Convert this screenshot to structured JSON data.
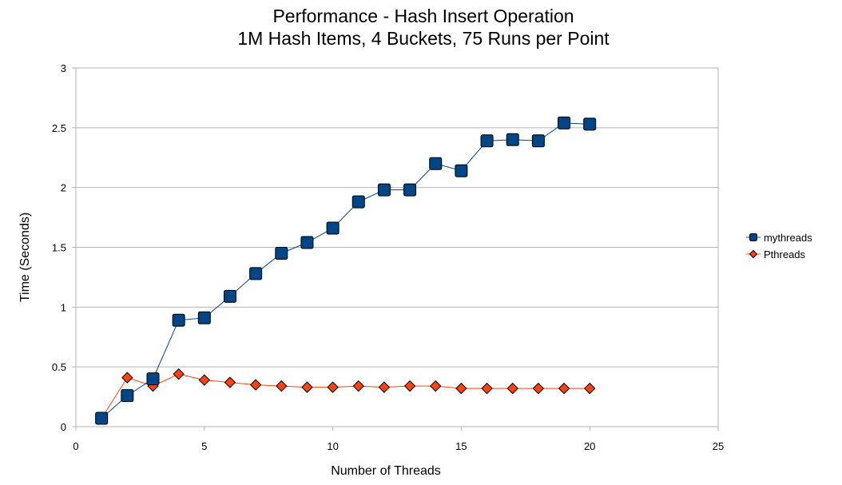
{
  "chart_data": {
    "type": "line",
    "title": "Performance - Hash Insert Operation",
    "subtitle": "1M Hash Items, 4 Buckets, 75 Runs per Point",
    "xlabel": "Number of Threads",
    "ylabel": "Time (Seconds)",
    "xlim": [
      0,
      25
    ],
    "ylim": [
      0,
      3
    ],
    "xticks": [
      "0",
      "5",
      "10",
      "15",
      "20",
      "25"
    ],
    "yticks": [
      "0",
      "0.5",
      "1",
      "1.5",
      "2",
      "2.5",
      "3"
    ],
    "grid": "horizontal",
    "legend_position": "right",
    "x": [
      1,
      2,
      3,
      4,
      5,
      6,
      7,
      8,
      9,
      10,
      11,
      12,
      13,
      14,
      15,
      16,
      17,
      18,
      19,
      20
    ],
    "series": [
      {
        "name": "mythreads",
        "marker": "square",
        "color": "#004586",
        "values": [
          0.07,
          0.26,
          0.4,
          0.89,
          0.91,
          1.09,
          1.28,
          1.45,
          1.54,
          1.66,
          1.88,
          1.98,
          1.98,
          2.2,
          2.14,
          2.39,
          2.4,
          2.39,
          2.54,
          2.53
        ]
      },
      {
        "name": "Pthreads",
        "marker": "diamond",
        "color": "#ff420e",
        "values": [
          0.07,
          0.41,
          0.34,
          0.44,
          0.39,
          0.37,
          0.35,
          0.34,
          0.33,
          0.33,
          0.34,
          0.33,
          0.34,
          0.34,
          0.32,
          0.32,
          0.32,
          0.32,
          0.32,
          0.32
        ]
      }
    ]
  }
}
